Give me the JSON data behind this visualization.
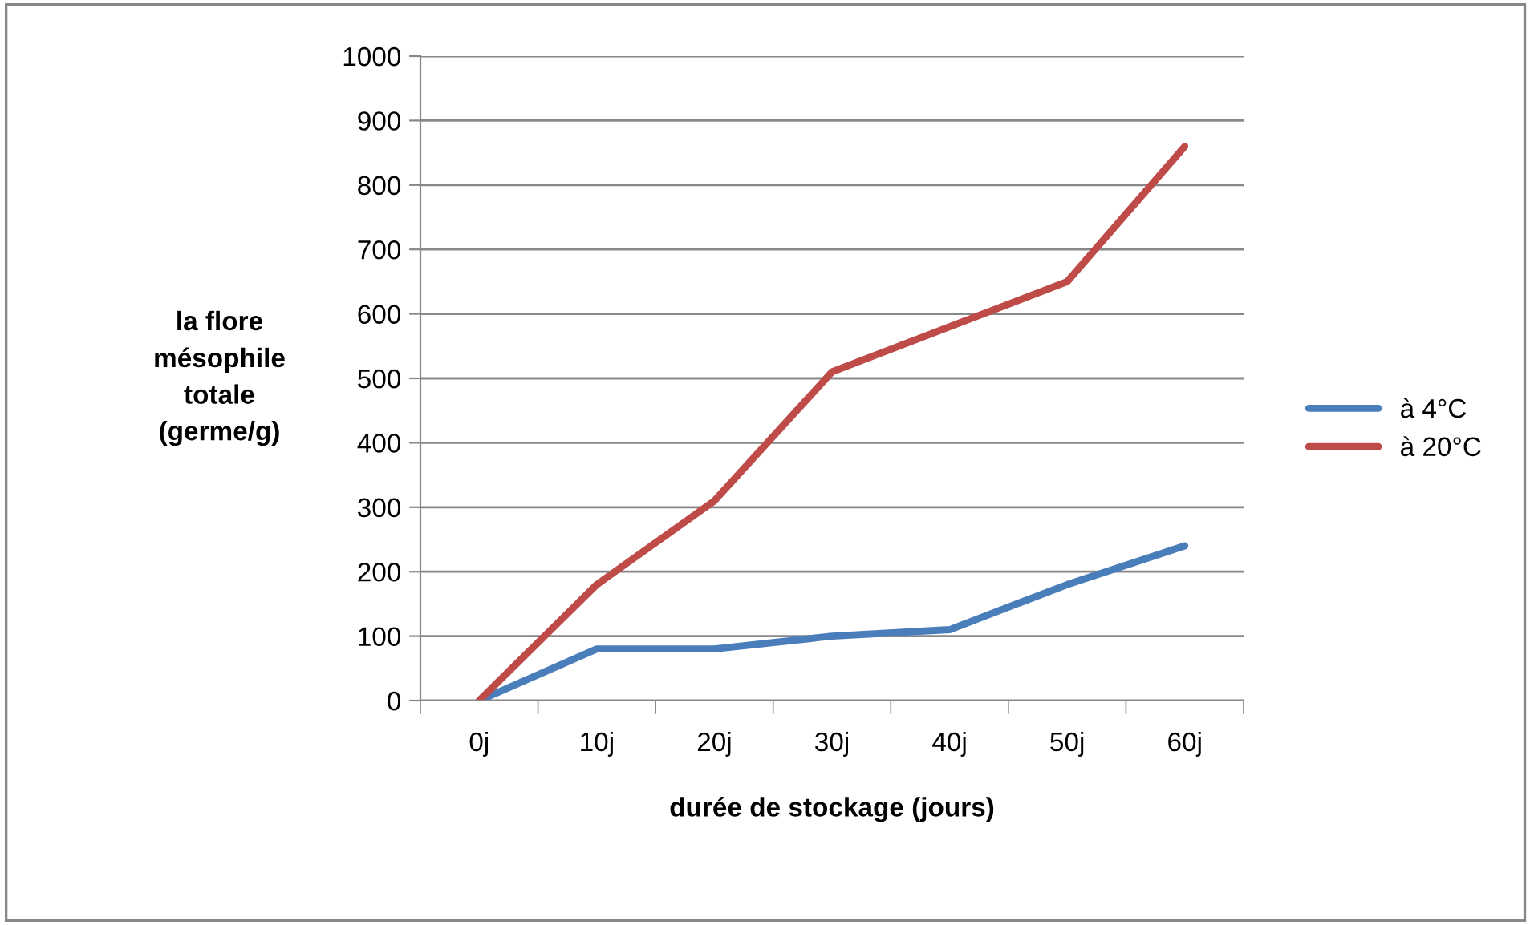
{
  "chart_data": {
    "type": "line",
    "xlabel": "durée de stockage (jours)",
    "ylabel": "la flore\nmésophile\ntotale\n(germe/g)",
    "categories": [
      "0j",
      "10j",
      "20j",
      "30j",
      "40j",
      "50j",
      "60j"
    ],
    "series": [
      {
        "name": "à 4°C",
        "color": "#4a7ebb",
        "values": [
          0,
          80,
          80,
          100,
          110,
          180,
          240
        ]
      },
      {
        "name": "à 20°C",
        "color": "#be4b48",
        "values": [
          0,
          180,
          310,
          510,
          580,
          650,
          860
        ]
      }
    ],
    "ylim": [
      0,
      1000
    ],
    "yticks": [
      0,
      100,
      200,
      300,
      400,
      500,
      600,
      700,
      800,
      900,
      1000
    ],
    "grid": "y",
    "legend": "right",
    "marker": "none",
    "line_style": "solid"
  }
}
